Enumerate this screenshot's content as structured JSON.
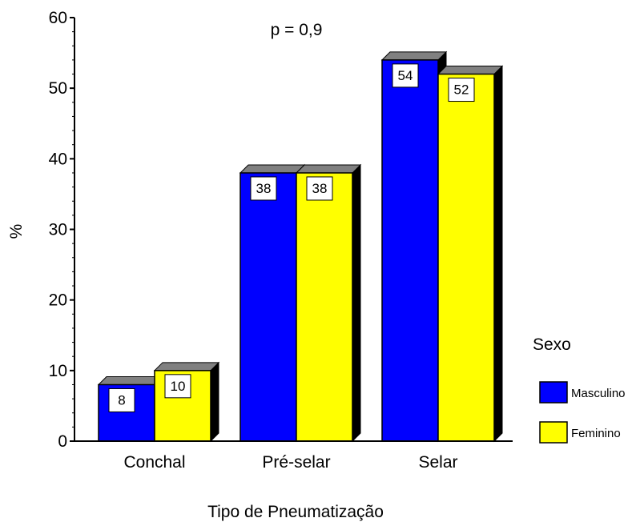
{
  "chart_data": {
    "type": "bar",
    "categories": [
      "Conchal",
      "Pré-selar",
      "Selar"
    ],
    "series": [
      {
        "name": "Masculino",
        "values": [
          8,
          38,
          54
        ],
        "color": "#0000ff"
      },
      {
        "name": "Feminino",
        "values": [
          10,
          38,
          52
        ],
        "color": "#ffff00"
      }
    ],
    "data_labels": [
      [
        "8",
        "38",
        "54"
      ],
      [
        "10",
        "38",
        "52"
      ]
    ],
    "ylim": [
      0,
      60
    ],
    "yticks": [
      0,
      10,
      20,
      30,
      40,
      50,
      60
    ],
    "ylabel": "%",
    "xlabel": "Tipo de Pneumatização",
    "annotation": "p = 0,9",
    "legend_title": "Sexo",
    "legend_position": "right",
    "style": "3d",
    "grid": false
  }
}
